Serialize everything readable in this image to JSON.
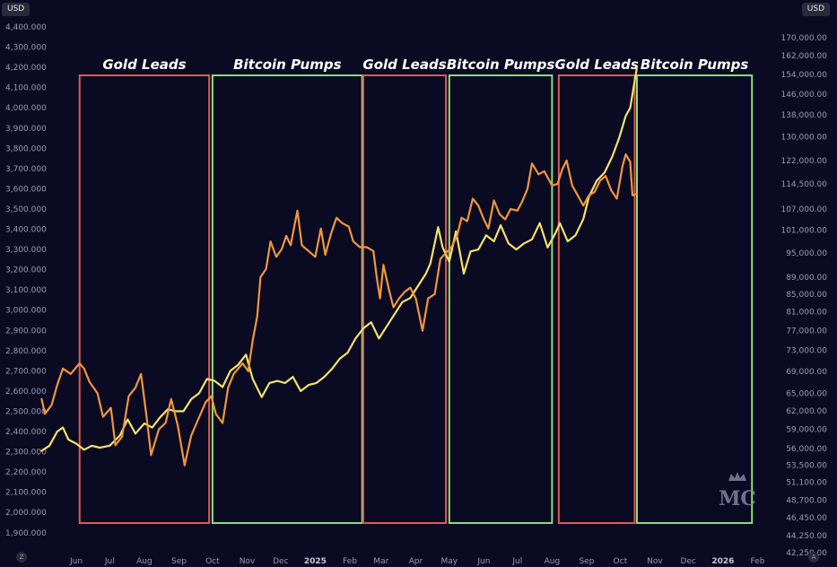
{
  "unit_left": "USD",
  "unit_right": "USD",
  "corner_left": "Z",
  "corner_right": "A",
  "logo_text": "MC",
  "chart_data": {
    "type": "line",
    "title": "",
    "left_axis": {
      "ticks": [
        "4,400.000",
        "4,300.000",
        "4,200.000",
        "4,100.000",
        "4,000.000",
        "3,900.000",
        "3,800.000",
        "3,700.000",
        "3,600.000",
        "3,500.000",
        "3,400.000",
        "3,300.000",
        "3,200.000",
        "3,100.000",
        "3,000.000",
        "2,900.000",
        "2,800.000",
        "2,700.000",
        "2,600.000",
        "2,500.000",
        "2,400.000",
        "2,300.000",
        "2,200.000",
        "2,100.000",
        "2,000.000",
        "1,900.000"
      ],
      "range": [
        1850,
        4450
      ]
    },
    "right_axis": {
      "scale": "log",
      "ticks": [
        "170,000.00",
        "162,000.00",
        "154,000.00",
        "146,000.00",
        "138,000.00",
        "130,000.00",
        "122,000.00",
        "114,500.00",
        "107,000.00",
        "101,000.00",
        "95,000.00",
        "89,000.00",
        "85,000.00",
        "81,000.00",
        "77,000.00",
        "73,000.00",
        "69,000.00",
        "65,000.00",
        "62,000.00",
        "59,000.00",
        "56,000.00",
        "53,500.00",
        "51,100.00",
        "48,700.00",
        "46,450.00",
        "44,250.00",
        "42,250.00"
      ]
    },
    "x_axis": {
      "ticks": [
        {
          "label": "Jun",
          "bold": false
        },
        {
          "label": "Jul",
          "bold": false
        },
        {
          "label": "Aug",
          "bold": false
        },
        {
          "label": "Sep",
          "bold": false
        },
        {
          "label": "Oct",
          "bold": false
        },
        {
          "label": "Nov",
          "bold": false
        },
        {
          "label": "Dec",
          "bold": false
        },
        {
          "label": "2025",
          "bold": true
        },
        {
          "label": "Feb",
          "bold": false
        },
        {
          "label": "Mar",
          "bold": false
        },
        {
          "label": "Apr",
          "bold": false
        },
        {
          "label": "May",
          "bold": false
        },
        {
          "label": "Jun",
          "bold": false
        },
        {
          "label": "Jul",
          "bold": false
        },
        {
          "label": "Aug",
          "bold": false
        },
        {
          "label": "Sep",
          "bold": false
        },
        {
          "label": "Oct",
          "bold": false
        },
        {
          "label": "Nov",
          "bold": false
        },
        {
          "label": "Dec",
          "bold": false
        },
        {
          "label": "2026",
          "bold": true
        },
        {
          "label": "Feb",
          "bold": false
        }
      ]
    },
    "regions": [
      {
        "label": "Gold Leads",
        "color": "#e05a50",
        "start": "2024-06-04",
        "end": "2024-09-28"
      },
      {
        "label": "Bitcoin Pumps",
        "color": "#86e07a",
        "start": "2024-10-01",
        "end": "2025-02-12"
      },
      {
        "label": "Gold Leads",
        "color": "#e05a50",
        "start": "2025-02-13",
        "end": "2025-04-28"
      },
      {
        "label": "Bitcoin Pumps",
        "color": "#86e07a",
        "start": "2025-05-01",
        "end": "2025-08-01"
      },
      {
        "label": "Gold Leads",
        "color": "#e05a50",
        "start": "2025-08-07",
        "end": "2025-10-14"
      },
      {
        "label": "Bitcoin Pumps",
        "color": "#86e07a",
        "start": "2025-10-16",
        "end": "2026-01-27"
      }
    ],
    "series": [
      {
        "axis": "left",
        "color": "#f5e26a",
        "points": [
          [
            "2024-05-01",
            2305
          ],
          [
            "2024-05-08",
            2330
          ],
          [
            "2024-05-15",
            2400
          ],
          [
            "2024-05-20",
            2420
          ],
          [
            "2024-05-25",
            2360
          ],
          [
            "2024-06-01",
            2340
          ],
          [
            "2024-06-08",
            2310
          ],
          [
            "2024-06-15",
            2330
          ],
          [
            "2024-06-22",
            2320
          ],
          [
            "2024-07-01",
            2330
          ],
          [
            "2024-07-10",
            2380
          ],
          [
            "2024-07-17",
            2460
          ],
          [
            "2024-07-24",
            2390
          ],
          [
            "2024-08-01",
            2440
          ],
          [
            "2024-08-08",
            2420
          ],
          [
            "2024-08-15",
            2470
          ],
          [
            "2024-08-22",
            2510
          ],
          [
            "2024-08-29",
            2500
          ],
          [
            "2024-09-05",
            2500
          ],
          [
            "2024-09-12",
            2560
          ],
          [
            "2024-09-19",
            2590
          ],
          [
            "2024-09-26",
            2660
          ],
          [
            "2024-10-03",
            2650
          ],
          [
            "2024-10-10",
            2620
          ],
          [
            "2024-10-17",
            2700
          ],
          [
            "2024-10-24",
            2730
          ],
          [
            "2024-10-31",
            2780
          ],
          [
            "2024-11-06",
            2660
          ],
          [
            "2024-11-14",
            2570
          ],
          [
            "2024-11-21",
            2640
          ],
          [
            "2024-11-28",
            2650
          ],
          [
            "2024-12-05",
            2640
          ],
          [
            "2024-12-12",
            2670
          ],
          [
            "2024-12-19",
            2600
          ],
          [
            "2024-12-26",
            2630
          ],
          [
            "2025-01-02",
            2640
          ],
          [
            "2025-01-09",
            2670
          ],
          [
            "2025-01-16",
            2710
          ],
          [
            "2025-01-23",
            2760
          ],
          [
            "2025-01-30",
            2790
          ],
          [
            "2025-02-06",
            2860
          ],
          [
            "2025-02-13",
            2910
          ],
          [
            "2025-02-20",
            2940
          ],
          [
            "2025-02-27",
            2860
          ],
          [
            "2025-03-06",
            2920
          ],
          [
            "2025-03-13",
            2980
          ],
          [
            "2025-03-20",
            3040
          ],
          [
            "2025-03-27",
            3060
          ],
          [
            "2025-04-03",
            3120
          ],
          [
            "2025-04-10",
            3180
          ],
          [
            "2025-04-14",
            3230
          ],
          [
            "2025-04-21",
            3410
          ],
          [
            "2025-04-25",
            3310
          ],
          [
            "2025-05-01",
            3240
          ],
          [
            "2025-05-07",
            3390
          ],
          [
            "2025-05-14",
            3180
          ],
          [
            "2025-05-20",
            3290
          ],
          [
            "2025-05-27",
            3300
          ],
          [
            "2025-06-03",
            3370
          ],
          [
            "2025-06-10",
            3340
          ],
          [
            "2025-06-16",
            3420
          ],
          [
            "2025-06-23",
            3330
          ],
          [
            "2025-06-30",
            3300
          ],
          [
            "2025-07-07",
            3330
          ],
          [
            "2025-07-14",
            3350
          ],
          [
            "2025-07-21",
            3430
          ],
          [
            "2025-07-28",
            3310
          ],
          [
            "2025-08-04",
            3380
          ],
          [
            "2025-08-08",
            3430
          ],
          [
            "2025-08-15",
            3340
          ],
          [
            "2025-08-22",
            3370
          ],
          [
            "2025-08-29",
            3450
          ],
          [
            "2025-09-03",
            3560
          ],
          [
            "2025-09-10",
            3640
          ],
          [
            "2025-09-17",
            3680
          ],
          [
            "2025-09-24",
            3760
          ],
          [
            "2025-09-30",
            3850
          ],
          [
            "2025-10-06",
            3960
          ],
          [
            "2025-10-10",
            4000
          ],
          [
            "2025-10-16",
            4200
          ]
        ]
      },
      {
        "axis": "right",
        "color": "#f0963c",
        "points": [
          [
            "2024-05-01",
            64000
          ],
          [
            "2024-05-04",
            61500
          ],
          [
            "2024-05-10",
            63000
          ],
          [
            "2024-05-15",
            66500
          ],
          [
            "2024-05-20",
            69500
          ],
          [
            "2024-05-27",
            68500
          ],
          [
            "2024-06-04",
            70500
          ],
          [
            "2024-06-08",
            69500
          ],
          [
            "2024-06-13",
            67000
          ],
          [
            "2024-06-20",
            65000
          ],
          [
            "2024-06-25",
            61000
          ],
          [
            "2024-07-02",
            62500
          ],
          [
            "2024-07-06",
            56500
          ],
          [
            "2024-07-12",
            57800
          ],
          [
            "2024-07-18",
            64500
          ],
          [
            "2024-07-24",
            66000
          ],
          [
            "2024-07-29",
            68500
          ],
          [
            "2024-08-03",
            61000
          ],
          [
            "2024-08-07",
            55000
          ],
          [
            "2024-08-14",
            59000
          ],
          [
            "2024-08-20",
            60000
          ],
          [
            "2024-08-25",
            64000
          ],
          [
            "2024-08-31",
            59500
          ],
          [
            "2024-09-06",
            53500
          ],
          [
            "2024-09-12",
            58000
          ],
          [
            "2024-09-18",
            60500
          ],
          [
            "2024-09-25",
            63500
          ],
          [
            "2024-09-30",
            64500
          ],
          [
            "2024-10-04",
            61500
          ],
          [
            "2024-10-10",
            60000
          ],
          [
            "2024-10-15",
            66000
          ],
          [
            "2024-10-20",
            68500
          ],
          [
            "2024-10-28",
            70500
          ],
          [
            "2024-11-02",
            69000
          ],
          [
            "2024-11-06",
            75000
          ],
          [
            "2024-11-10",
            80000
          ],
          [
            "2024-11-13",
            89000
          ],
          [
            "2024-11-18",
            91000
          ],
          [
            "2024-11-22",
            98000
          ],
          [
            "2024-11-27",
            94000
          ],
          [
            "2024-12-02",
            96000
          ],
          [
            "2024-12-06",
            99500
          ],
          [
            "2024-12-10",
            97000
          ],
          [
            "2024-12-16",
            106500
          ],
          [
            "2024-12-20",
            97000
          ],
          [
            "2024-12-26",
            95500
          ],
          [
            "2025-01-01",
            94000
          ],
          [
            "2025-01-06",
            101500
          ],
          [
            "2025-01-10",
            94500
          ],
          [
            "2025-01-15",
            100000
          ],
          [
            "2025-01-20",
            104500
          ],
          [
            "2025-01-25",
            103000
          ],
          [
            "2025-01-31",
            102000
          ],
          [
            "2025-02-04",
            98000
          ],
          [
            "2025-02-10",
            96500
          ],
          [
            "2025-02-16",
            96500
          ],
          [
            "2025-02-22",
            95500
          ],
          [
            "2025-02-25",
            89000
          ],
          [
            "2025-02-28",
            84000
          ],
          [
            "2025-03-03",
            92000
          ],
          [
            "2025-03-08",
            86000
          ],
          [
            "2025-03-12",
            82000
          ],
          [
            "2025-03-17",
            84000
          ],
          [
            "2025-03-22",
            85500
          ],
          [
            "2025-03-27",
            86500
          ],
          [
            "2025-04-01",
            84000
          ],
          [
            "2025-04-07",
            77000
          ],
          [
            "2025-04-12",
            84000
          ],
          [
            "2025-04-18",
            85000
          ],
          [
            "2025-04-23",
            93500
          ],
          [
            "2025-04-28",
            95000
          ],
          [
            "2025-05-03",
            96500
          ],
          [
            "2025-05-08",
            99500
          ],
          [
            "2025-05-12",
            104500
          ],
          [
            "2025-05-17",
            103500
          ],
          [
            "2025-05-22",
            110000
          ],
          [
            "2025-05-27",
            108000
          ],
          [
            "2025-06-01",
            104000
          ],
          [
            "2025-06-05",
            101500
          ],
          [
            "2025-06-10",
            109500
          ],
          [
            "2025-06-15",
            105500
          ],
          [
            "2025-06-20",
            104000
          ],
          [
            "2025-06-25",
            107000
          ],
          [
            "2025-07-01",
            106500
          ],
          [
            "2025-07-05",
            109000
          ],
          [
            "2025-07-10",
            113000
          ],
          [
            "2025-07-14",
            121000
          ],
          [
            "2025-07-20",
            117500
          ],
          [
            "2025-07-25",
            118500
          ],
          [
            "2025-08-01",
            114000
          ],
          [
            "2025-08-06",
            114500
          ],
          [
            "2025-08-10",
            119000
          ],
          [
            "2025-08-14",
            122000
          ],
          [
            "2025-08-19",
            114000
          ],
          [
            "2025-08-24",
            111000
          ],
          [
            "2025-08-29",
            108000
          ],
          [
            "2025-09-03",
            111000
          ],
          [
            "2025-09-08",
            112000
          ],
          [
            "2025-09-13",
            115500
          ],
          [
            "2025-09-18",
            117000
          ],
          [
            "2025-09-23",
            112500
          ],
          [
            "2025-09-28",
            110000
          ],
          [
            "2025-10-03",
            120000
          ],
          [
            "2025-10-06",
            124000
          ],
          [
            "2025-10-10",
            121500
          ],
          [
            "2025-10-12",
            111000
          ],
          [
            "2025-10-16",
            111500
          ]
        ]
      }
    ]
  }
}
